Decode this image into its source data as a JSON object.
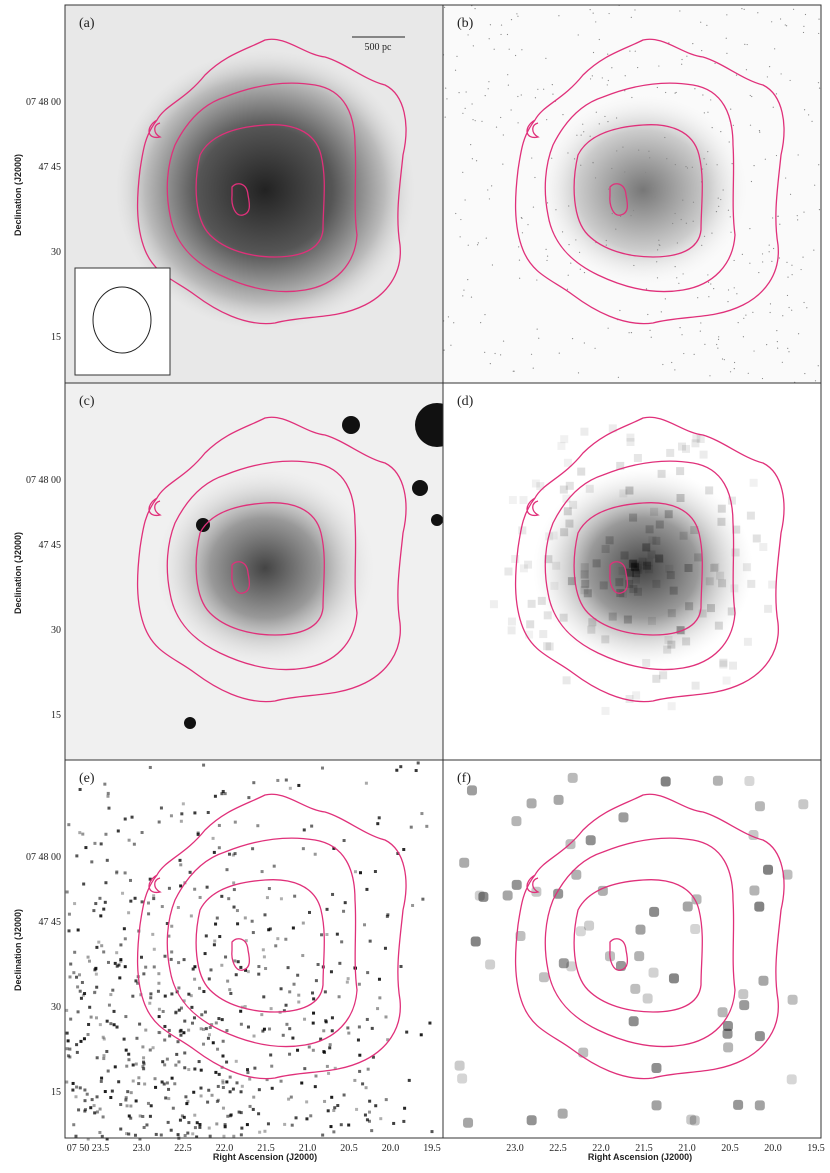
{
  "panels": [
    {
      "label": "(a)"
    },
    {
      "label": "(b)"
    },
    {
      "label": "(c)"
    },
    {
      "label": "(d)"
    },
    {
      "label": "(e)"
    },
    {
      "label": "(f)"
    }
  ],
  "scale_bar": "500 pc",
  "y_axis": {
    "title": "Declination (J2000)",
    "ticks": [
      "07 48 00",
      "47 45",
      "30",
      "15"
    ]
  },
  "x_axis": {
    "title": "Right Ascension (J2000)",
    "left_ticks": [
      "07 50 23.5",
      "23.0",
      "22.5",
      "22.0",
      "21.5",
      "21.0",
      "20.5",
      "20.0",
      "19.5"
    ],
    "right_ticks": [
      "23.0",
      "22.5",
      "22.0",
      "21.5",
      "21.0",
      "20.5",
      "20.0",
      "19.5"
    ]
  }
}
